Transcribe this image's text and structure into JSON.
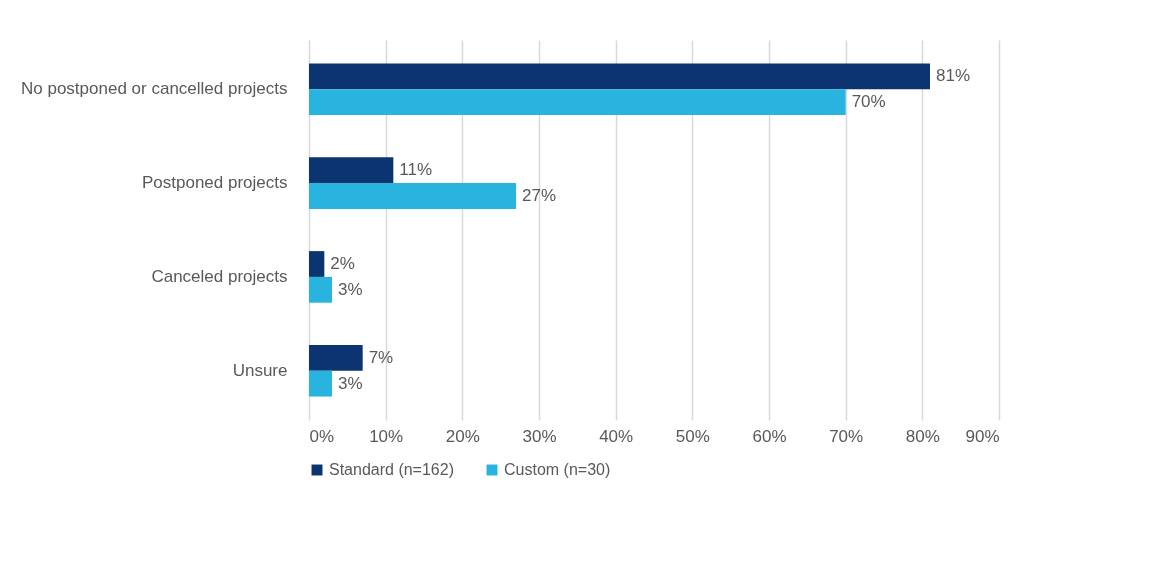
{
  "chart_data": {
    "type": "bar",
    "orientation": "horizontal",
    "categories": [
      "No postponed or cancelled projects",
      "Postponed projects",
      "Canceled projects",
      "Unsure"
    ],
    "series": [
      {
        "name": "Standard (n=162)",
        "color": "#0c3470",
        "values": [
          81,
          11,
          2,
          7
        ],
        "value_labels": [
          "81%",
          "11%",
          "2%",
          "7%"
        ]
      },
      {
        "name": "Custom (n=30)",
        "color": "#29b4e0",
        "values": [
          70,
          27,
          3,
          3
        ],
        "value_labels": [
          "70%",
          "27%",
          "3%",
          "3%"
        ]
      }
    ],
    "xlim": [
      0,
      90
    ],
    "xticks": [
      {
        "value": 0,
        "label": "0%"
      },
      {
        "value": 10,
        "label": "10%"
      },
      {
        "value": 20,
        "label": "20%"
      },
      {
        "value": 30,
        "label": "30%"
      },
      {
        "value": 40,
        "label": "40%"
      },
      {
        "value": 50,
        "label": "50%"
      },
      {
        "value": 60,
        "label": "60%"
      },
      {
        "value": 70,
        "label": "70%"
      },
      {
        "value": 80,
        "label": "80%"
      },
      {
        "value": 90,
        "label": "90%"
      }
    ],
    "grid": "x",
    "legend": "bottom"
  }
}
